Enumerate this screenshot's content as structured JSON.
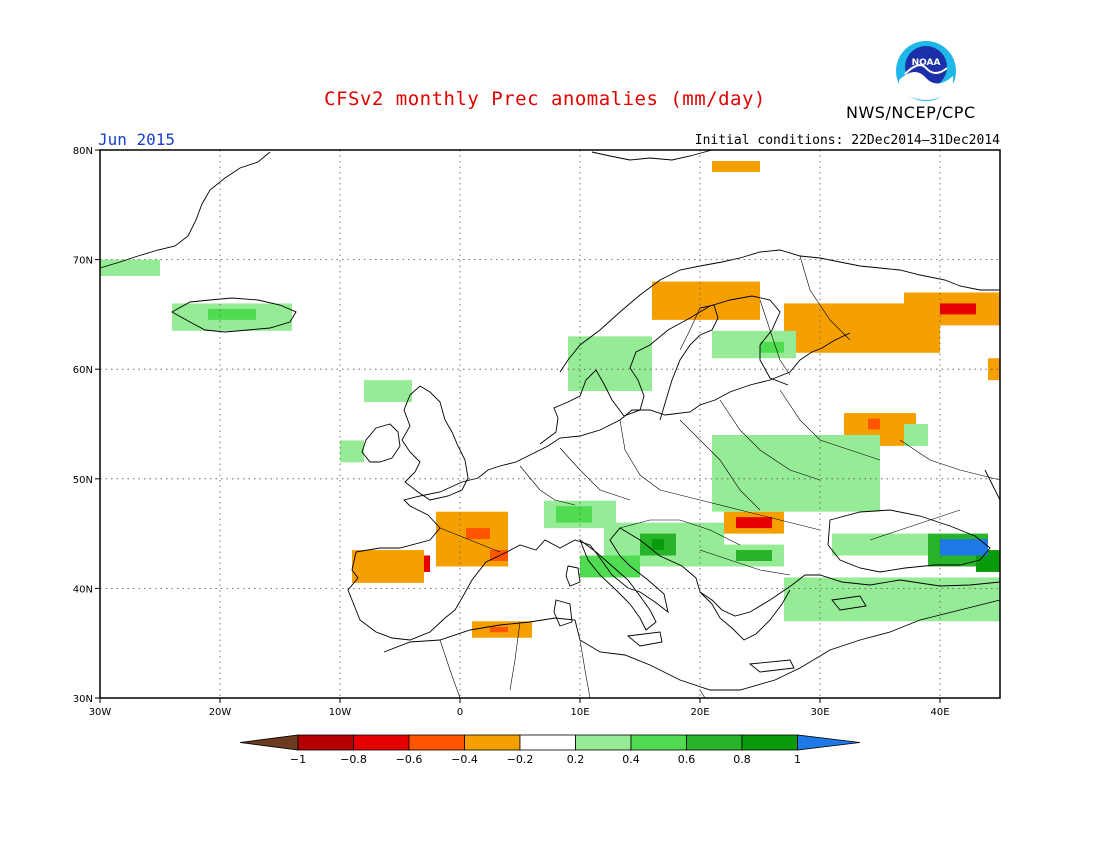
{
  "title": "CFSv2 monthly Prec anomalies (mm/day)",
  "month_label": "Jun 2015",
  "initial_conditions": "Initial conditions: 22Dec2014–31Dec2014",
  "agency": "NWS/NCEP/CPC",
  "logo_text": "NOAA",
  "map": {
    "extent": {
      "lon": [
        -30,
        45
      ],
      "lat": [
        30,
        80
      ]
    },
    "lon_ticks": [
      {
        "value": -30,
        "label": "30W"
      },
      {
        "value": -20,
        "label": "20W"
      },
      {
        "value": -10,
        "label": "10W"
      },
      {
        "value": 0,
        "label": "0"
      },
      {
        "value": 10,
        "label": "10E"
      },
      {
        "value": 20,
        "label": "20E"
      },
      {
        "value": 30,
        "label": "30E"
      },
      {
        "value": 40,
        "label": "40E"
      }
    ],
    "lat_ticks": [
      {
        "value": 30,
        "label": "30N"
      },
      {
        "value": 40,
        "label": "40N"
      },
      {
        "value": 50,
        "label": "50N"
      },
      {
        "value": 60,
        "label": "60N"
      },
      {
        "value": 70,
        "label": "70N"
      },
      {
        "value": 80,
        "label": "80N"
      }
    ],
    "gridlines": "dotted"
  },
  "colorbar": {
    "levels": [
      "−1",
      "−0.8",
      "−0.6",
      "−0.4",
      "−0.2",
      "0.2",
      "0.4",
      "0.6",
      "0.8",
      "1"
    ],
    "colors": [
      "#6b3a1f",
      "#b40000",
      "#e60000",
      "#ff5500",
      "#f5a000",
      "#ffffff",
      "#96eb96",
      "#50dc50",
      "#28b428",
      "#0a9b0a",
      "#1e78e6"
    ]
  },
  "chart_data": {
    "type": "heatmap",
    "description_units": "mm/day",
    "anomaly_patches": [
      {
        "lon": [
          -7.5,
          -2.5
        ],
        "lat": [
          41.5,
          43
        ],
        "value": -0.6
      },
      {
        "lon": [
          -9,
          -3
        ],
        "lat": [
          40.5,
          43.5
        ],
        "value": -0.3
      },
      {
        "lon": [
          -2,
          4
        ],
        "lat": [
          42,
          47
        ],
        "value": -0.3
      },
      {
        "lon": [
          0.5,
          2.5
        ],
        "lat": [
          44.5,
          45.5
        ],
        "value": -0.5
      },
      {
        "lon": [
          2.5,
          4
        ],
        "lat": [
          42.5,
          43.5
        ],
        "value": -0.5
      },
      {
        "lon": [
          1,
          6
        ],
        "lat": [
          35.5,
          37
        ],
        "value": -0.3
      },
      {
        "lon": [
          2.5,
          4
        ],
        "lat": [
          36,
          36.5
        ],
        "value": -0.5
      },
      {
        "lon": [
          16,
          25
        ],
        "lat": [
          64.5,
          68
        ],
        "value": -0.3
      },
      {
        "lon": [
          21,
          25
        ],
        "lat": [
          78,
          79
        ],
        "value": -0.3
      },
      {
        "lon": [
          27,
          40
        ],
        "lat": [
          61.5,
          66
        ],
        "value": -0.3
      },
      {
        "lon": [
          37,
          45
        ],
        "lat": [
          64,
          67
        ],
        "value": -0.3
      },
      {
        "lon": [
          40,
          43
        ],
        "lat": [
          65,
          66
        ],
        "value": -0.6
      },
      {
        "lon": [
          32,
          38
        ],
        "lat": [
          53,
          56
        ],
        "value": -0.3
      },
      {
        "lon": [
          34,
          35
        ],
        "lat": [
          54.5,
          55.5
        ],
        "value": -0.5
      },
      {
        "lon": [
          22,
          27
        ],
        "lat": [
          45,
          47
        ],
        "value": -0.3
      },
      {
        "lon": [
          23,
          26
        ],
        "lat": [
          45.5,
          46.5
        ],
        "value": -0.6
      },
      {
        "lon": [
          44,
          45
        ],
        "lat": [
          59,
          61
        ],
        "value": -0.3
      },
      {
        "lon": [
          -30,
          -25
        ],
        "lat": [
          68.5,
          70
        ],
        "value": 0.3
      },
      {
        "lon": [
          -24,
          -14
        ],
        "lat": [
          63.5,
          66
        ],
        "value": 0.3
      },
      {
        "lon": [
          -21,
          -17
        ],
        "lat": [
          64.5,
          65.5
        ],
        "value": 0.5
      },
      {
        "lon": [
          -8,
          -4
        ],
        "lat": [
          57,
          59
        ],
        "value": 0.3
      },
      {
        "lon": [
          -10,
          -8
        ],
        "lat": [
          51.5,
          53.5
        ],
        "value": 0.3
      },
      {
        "lon": [
          9,
          16
        ],
        "lat": [
          58,
          63
        ],
        "value": 0.3
      },
      {
        "lon": [
          21,
          28
        ],
        "lat": [
          61,
          63.5
        ],
        "value": 0.3
      },
      {
        "lon": [
          25,
          27
        ],
        "lat": [
          61.5,
          62.5
        ],
        "value": 0.5
      },
      {
        "lon": [
          21,
          35
        ],
        "lat": [
          47,
          54
        ],
        "value": 0.3
      },
      {
        "lon": [
          37,
          39
        ],
        "lat": [
          53,
          55
        ],
        "value": 0.3
      },
      {
        "lon": [
          7,
          13
        ],
        "lat": [
          45.5,
          48
        ],
        "value": 0.3
      },
      {
        "lon": [
          8,
          11
        ],
        "lat": [
          46,
          47.5
        ],
        "value": 0.5
      },
      {
        "lon": [
          12,
          22
        ],
        "lat": [
          42,
          46
        ],
        "value": 0.3
      },
      {
        "lon": [
          15,
          18
        ],
        "lat": [
          43,
          45
        ],
        "value": 0.6
      },
      {
        "lon": [
          16,
          17
        ],
        "lat": [
          43.5,
          44.5
        ],
        "value": 0.8
      },
      {
        "lon": [
          10,
          15
        ],
        "lat": [
          41,
          43
        ],
        "value": 0.5
      },
      {
        "lon": [
          22,
          27
        ],
        "lat": [
          42,
          44
        ],
        "value": 0.3
      },
      {
        "lon": [
          23,
          26
        ],
        "lat": [
          42.5,
          43.5
        ],
        "value": 0.6
      },
      {
        "lon": [
          27,
          45
        ],
        "lat": [
          37,
          41
        ],
        "value": 0.3
      },
      {
        "lon": [
          31,
          39
        ],
        "lat": [
          43,
          45
        ],
        "value": 0.3
      },
      {
        "lon": [
          39,
          44
        ],
        "lat": [
          42,
          45
        ],
        "value": 0.6
      },
      {
        "lon": [
          43,
          45
        ],
        "lat": [
          41.5,
          43.5
        ],
        "value": 0.8
      },
      {
        "lon": [
          40,
          44
        ],
        "lat": [
          43,
          44.5
        ],
        "value": 1.0
      }
    ]
  }
}
